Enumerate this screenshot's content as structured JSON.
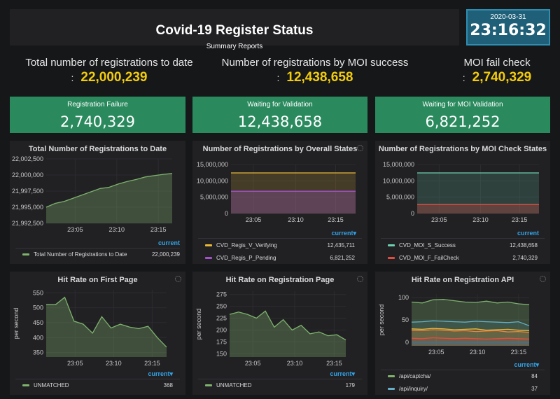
{
  "header": {
    "title": "Covid-19 Register Status",
    "subtitle": "Summary Reports"
  },
  "clock": {
    "date": "2020-03-31",
    "time": "23:16:32"
  },
  "big_stats": [
    {
      "label": "Total number of registrations to date",
      "colon": ":",
      "value": "22,000,239"
    },
    {
      "label": "Number of registrations by MOI success",
      "colon": ":",
      "value": "12,438,658"
    },
    {
      "label": "MOI fail check",
      "colon": ":",
      "value": "2,740,329"
    }
  ],
  "green_stats": [
    {
      "label": "Registration Failure",
      "value": "2,740,329"
    },
    {
      "label": "Waiting for Validation",
      "value": "12,438,658"
    },
    {
      "label": "Waiting for MOI Validation",
      "value": "6,821,252"
    }
  ],
  "panels": [
    {
      "title": "Total Number of Registrations to Date",
      "legend_head": "current",
      "legend": [
        {
          "name": "Total Number of Registrations to Date",
          "value": "22,000,239",
          "color": "#7eb26d"
        }
      ]
    },
    {
      "title": "Number of Registrations by Overall States",
      "legend_head": "current▾",
      "legend": [
        {
          "name": "CVD_Regis_V_Verifying",
          "value": "12,435,711",
          "color": "#eab839"
        },
        {
          "name": "CVD_Regis_P_Pending",
          "value": "6,821,252",
          "color": "#a352cc"
        }
      ]
    },
    {
      "title": "Number of Registrations by MOI Check States",
      "legend_head": "current",
      "legend": [
        {
          "name": "CVD_MOI_S_Success",
          "value": "12,438,658",
          "color": "#6ed0b0"
        },
        {
          "name": "CVD_MOI_F_FailCheck",
          "value": "2,740,329",
          "color": "#e24d42"
        }
      ]
    },
    {
      "title": "Hit Rate on First Page",
      "legend_head": "current▾",
      "legend": [
        {
          "name": "UNMATCHED",
          "value": "368",
          "color": "#7eb26d"
        }
      ]
    },
    {
      "title": "Hit Rate on Registration Page",
      "legend_head": "current▾",
      "legend": [
        {
          "name": "UNMATCHED",
          "value": "179",
          "color": "#7eb26d"
        }
      ]
    },
    {
      "title": "Hit Rate on Registration API",
      "legend_head": "current▾",
      "legend": [
        {
          "name": "/api/captcha/",
          "value": "84",
          "color": "#7eb26d"
        },
        {
          "name": "/api/inquiry/",
          "value": "37",
          "color": "#64b0c8"
        }
      ]
    }
  ],
  "chart_data": [
    {
      "type": "area",
      "title": "Total Number of Registrations to Date",
      "x_ticks": [
        "23:05",
        "23:10",
        "23:15"
      ],
      "y_ticks": [
        "22,002,500",
        "22,000,000",
        "21,997,500",
        "21,995,000",
        "21,992,500"
      ],
      "ylim": [
        21992500,
        22002500
      ],
      "series": [
        {
          "name": "Total Number of Registrations to Date",
          "color": "#7eb26d",
          "values": [
            21995000,
            21995600,
            21995900,
            21996400,
            21996900,
            21997400,
            21997900,
            21998100,
            21998600,
            21999000,
            21999300,
            21999700,
            21999900,
            22000100,
            22000239
          ]
        }
      ]
    },
    {
      "type": "area",
      "title": "Number of Registrations by Overall States",
      "x_ticks": [
        "23:05",
        "23:10",
        "23:15"
      ],
      "y_ticks": [
        "15,000,000",
        "10,000,000",
        "5,000,000",
        "0"
      ],
      "ylim": [
        0,
        15000000
      ],
      "series": [
        {
          "name": "CVD_Regis_V_Verifying",
          "color": "#eab839",
          "values": [
            12435711,
            12435711
          ]
        },
        {
          "name": "CVD_Regis_P_Pending",
          "color": "#a352cc",
          "values": [
            6821252,
            6821252
          ]
        }
      ]
    },
    {
      "type": "area",
      "title": "Number of Registrations by MOI Check States",
      "x_ticks": [
        "23:05",
        "23:10",
        "23:15"
      ],
      "y_ticks": [
        "15,000,000",
        "10,000,000",
        "5,000,000",
        "0"
      ],
      "ylim": [
        0,
        15000000
      ],
      "series": [
        {
          "name": "CVD_MOI_S_Success",
          "color": "#6ed0b0",
          "values": [
            12438658,
            12438658
          ]
        },
        {
          "name": "CVD_MOI_F_FailCheck",
          "color": "#e24d42",
          "values": [
            2740329,
            2740329
          ]
        }
      ]
    },
    {
      "type": "area",
      "title": "Hit Rate on First Page",
      "ylabel": "per second",
      "x_ticks": [
        "23:05",
        "23:10",
        "23:15"
      ],
      "y_ticks": [
        "550",
        "500",
        "450",
        "400",
        "350"
      ],
      "ylim": [
        335,
        560
      ],
      "series": [
        {
          "name": "UNMATCHED",
          "color": "#7eb26d",
          "values": [
            510,
            510,
            535,
            455,
            445,
            415,
            470,
            432,
            445,
            435,
            430,
            438,
            400,
            368
          ]
        }
      ]
    },
    {
      "type": "area",
      "title": "Hit Rate on Registration Page",
      "ylabel": "per second",
      "x_ticks": [
        "23:05",
        "23:10",
        "23:15"
      ],
      "y_ticks": [
        "275",
        "250",
        "225",
        "200",
        "175",
        "150"
      ],
      "ylim": [
        143,
        282
      ],
      "series": [
        {
          "name": "UNMATCHED",
          "color": "#7eb26d",
          "values": [
            233,
            238,
            233,
            225,
            240,
            206,
            222,
            200,
            210,
            192,
            196,
            188,
            190,
            179
          ]
        }
      ]
    },
    {
      "type": "area",
      "title": "Hit Rate on Registration API",
      "ylabel": "per second",
      "x_ticks": [
        "23:05",
        "23:10",
        "23:15"
      ],
      "y_ticks": [
        "100",
        "50",
        "0"
      ],
      "ylim": [
        -8,
        108
      ],
      "series": [
        {
          "name": "/api/captcha/",
          "color": "#7eb26d",
          "values": [
            90,
            88,
            95,
            96,
            93,
            90,
            89,
            92,
            88,
            90,
            86,
            84
          ]
        },
        {
          "name": "/api/inquiry/",
          "color": "#64b0c8",
          "values": [
            45,
            46,
            48,
            47,
            46,
            45,
            47,
            46,
            45,
            44,
            46,
            37
          ]
        },
        {
          "color": "#eab839",
          "values": [
            30,
            29,
            31,
            30,
            28,
            29,
            30,
            27,
            28,
            29,
            27,
            26
          ]
        },
        {
          "color": "#ef843c",
          "values": [
            27,
            26,
            28,
            27,
            25,
            26,
            24,
            25,
            26,
            23,
            24,
            22
          ]
        },
        {
          "color": "#e24d42",
          "values": [
            9,
            8,
            10,
            9,
            8,
            9,
            8,
            7,
            8,
            9,
            8,
            7
          ]
        },
        {
          "color": "#1f78c1",
          "values": [
            0,
            0,
            0,
            0,
            0,
            0,
            0,
            0,
            0,
            0,
            0,
            0
          ]
        }
      ]
    }
  ]
}
